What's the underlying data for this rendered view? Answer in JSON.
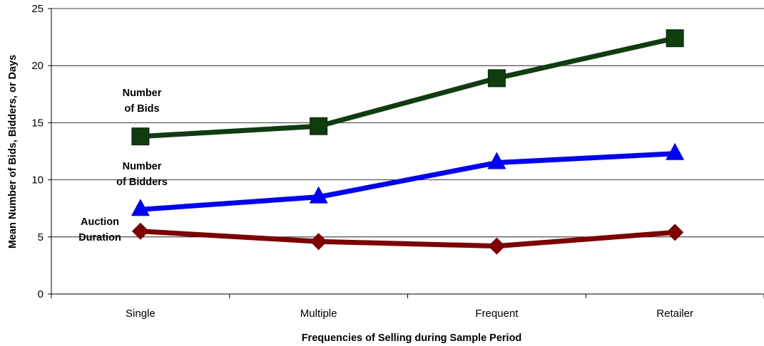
{
  "chart_data": {
    "type": "line",
    "title": "",
    "xlabel": "Frequencies of Selling during Sample Period",
    "ylabel": "Mean Number of Bids, Bidders, or Days",
    "categories": [
      "Single",
      "Multiple",
      "Frequent",
      "Retailer"
    ],
    "ylim": [
      0,
      25
    ],
    "yticks": [
      0,
      5,
      10,
      15,
      20,
      25
    ],
    "grid": true,
    "legend": "none",
    "series": [
      {
        "name": "Number of Bids",
        "label_lines": [
          "Number",
          "of Bids"
        ],
        "values": [
          13.8,
          14.7,
          18.9,
          22.4
        ],
        "color": "#0f3d0f",
        "marker": "square"
      },
      {
        "name": "Number of Bidders",
        "label_lines": [
          "Number",
          "of Bidders"
        ],
        "values": [
          7.4,
          8.5,
          11.5,
          12.3
        ],
        "color": "#0000ff",
        "marker": "triangle"
      },
      {
        "name": "Auction Duration",
        "label_lines": [
          "Auction",
          "Duration"
        ],
        "values": [
          5.5,
          4.6,
          4.2,
          5.4
        ],
        "color": "#800000",
        "marker": "diamond"
      }
    ]
  }
}
